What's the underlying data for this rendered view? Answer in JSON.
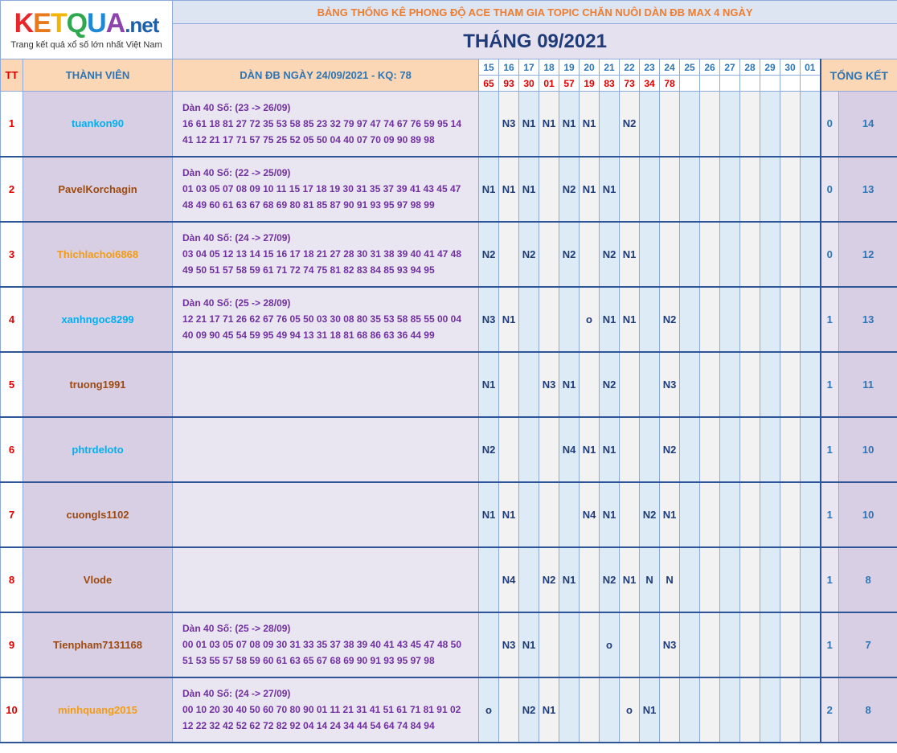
{
  "logo": {
    "brand": "KETQUA",
    "suffix": ".net",
    "tagline": "Trang kết quả xổ số lớn nhất Việt Nam"
  },
  "title": "BẢNG THỐNG KÊ PHONG ĐỘ ACE THAM GIA TOPIC CHĂN NUÔI DÀN ĐB MAX 4 NGÀY",
  "month": "THÁNG 09/2021",
  "headers": {
    "tt": "TT",
    "member": "THÀNH VIÊN",
    "dan": "DÀN ĐB NGÀY 24/09/2021 - KQ: 78",
    "total": "TỔNG KẾT"
  },
  "days": [
    "15",
    "16",
    "17",
    "18",
    "19",
    "20",
    "21",
    "22",
    "23",
    "24",
    "25",
    "26",
    "27",
    "28",
    "29",
    "30",
    "01"
  ],
  "results": [
    "65",
    "93",
    "30",
    "01",
    "57",
    "19",
    "83",
    "73",
    "34",
    "78",
    "",
    "",
    "",
    "",
    "",
    "",
    ""
  ],
  "colors": {
    "orange": "#e46c0a",
    "blue": "#00b0f0",
    "brown": "#9c4a10"
  },
  "rows": [
    {
      "tt": "1",
      "name": "tuankon90",
      "color": "#00b0f0",
      "dan_title": "Dàn 40 Số: (23 -> 26/09)",
      "dan_l1": "16 61 18 81 27 72 35 53 58 85 23 32 79 97 47 74 67 76 59 95 14",
      "dan_l2": "41 12 21 17 71 57 75 25 52 05 50 04 40 07 70 09 90 89 98",
      "cells": [
        "",
        "N3",
        "N1",
        "N1",
        "N1",
        "N1",
        "",
        "N2",
        "",
        "",
        "",
        "",
        "",
        "",
        "",
        "",
        ""
      ],
      "count": "0",
      "total": "14"
    },
    {
      "tt": "2",
      "name": "PavelKorchagin",
      "color": "#9c4a10",
      "dan_title": "Dàn 40 Số: (22 -> 25/09)",
      "dan_l1": "01 03 05 07 08 09 10 11 15 17 18 19 30 31 35 37 39 41 43 45 47",
      "dan_l2": "48 49 60 61 63 67 68 69 80 81 85 87 90 91 93 95 97 98 99",
      "cells": [
        "N1",
        "N1",
        "N1",
        "",
        "N2",
        "N1",
        "N1",
        "",
        "",
        "",
        "",
        "",
        "",
        "",
        "",
        "",
        ""
      ],
      "count": "0",
      "total": "13"
    },
    {
      "tt": "3",
      "name": "Thichlachoi6868",
      "color": "#f39c12",
      "dan_title": "Dàn 40 Số: (24 -> 27/09)",
      "dan_l1": "03 04 05 12 13 14 15 16 17 18 21 27 28 30 31 38 39 40 41 47 48",
      "dan_l2": "49 50 51 57 58 59 61 71 72 74 75 81 82 83 84 85 93 94 95",
      "cells": [
        "N2",
        "",
        "N2",
        "",
        "N2",
        "",
        "N2",
        "N1",
        "",
        "",
        "",
        "",
        "",
        "",
        "",
        "",
        ""
      ],
      "count": "0",
      "total": "12"
    },
    {
      "tt": "4",
      "name": "xanhngoc8299",
      "color": "#00b0f0",
      "dan_title": "Dàn 40 Số: (25 -> 28/09)",
      "dan_l1": "12 21 17 71 26 62 67 76 05 50 03 30 08 80 35 53 58 85 55 00 04",
      "dan_l2": "40 09 90 45 54 59 95 49 94 13 31 18 81 68 86 63 36 44 99",
      "cells": [
        "N3",
        "N1",
        "",
        "",
        "",
        "o",
        "N1",
        "N1",
        "",
        "N2",
        "",
        "",
        "",
        "",
        "",
        "",
        ""
      ],
      "count": "1",
      "total": "13"
    },
    {
      "tt": "5",
      "name": "truong1991",
      "color": "#9c4a10",
      "dan_title": "",
      "dan_l1": "",
      "dan_l2": "",
      "cells": [
        "N1",
        "",
        "",
        "N3",
        "N1",
        "",
        "N2",
        "",
        "",
        "N3",
        "",
        "",
        "",
        "",
        "",
        "",
        ""
      ],
      "count": "1",
      "total": "11"
    },
    {
      "tt": "6",
      "name": "phtrdeloto",
      "color": "#00b0f0",
      "dan_title": "",
      "dan_l1": "",
      "dan_l2": "",
      "cells": [
        "N2",
        "",
        "",
        "",
        "N4",
        "N1",
        "N1",
        "",
        "",
        "N2",
        "",
        "",
        "",
        "",
        "",
        "",
        ""
      ],
      "count": "1",
      "total": "10"
    },
    {
      "tt": "7",
      "name": "cuongls1102",
      "color": "#9c4a10",
      "dan_title": "",
      "dan_l1": "",
      "dan_l2": "",
      "cells": [
        "N1",
        "N1",
        "",
        "",
        "",
        "N4",
        "N1",
        "",
        "N2",
        "N1",
        "",
        "",
        "",
        "",
        "",
        "",
        ""
      ],
      "count": "1",
      "total": "10"
    },
    {
      "tt": "8",
      "name": "Vlode",
      "color": "#9c4a10",
      "dan_title": "",
      "dan_l1": "",
      "dan_l2": "",
      "cells": [
        "",
        "N4",
        "",
        "N2",
        "N1",
        "",
        "N2",
        "N1",
        "N",
        "N",
        "",
        "",
        "",
        "",
        "",
        "",
        ""
      ],
      "count": "1",
      "total": "8"
    },
    {
      "tt": "9",
      "name": "Tienpham7131168",
      "color": "#9c4a10",
      "dan_title": "Dàn 40 Số: (25 -> 28/09)",
      "dan_l1": "00 01 03 05 07 08 09 30 31 33 35 37 38 39 40 41 43 45 47 48 50",
      "dan_l2": "51 53 55 57 58 59 60 61 63 65 67 68 69 90 91 93 95 97 98",
      "cells": [
        "",
        "N3",
        "N1",
        "",
        "",
        "",
        "o",
        "",
        "",
        "N3",
        "",
        "",
        "",
        "",
        "",
        "",
        ""
      ],
      "count": "1",
      "total": "7"
    },
    {
      "tt": "10",
      "name": "minhquang2015",
      "color": "#f39c12",
      "dan_title": "Dàn 40 Số: (24 -> 27/09)",
      "dan_l1": "00 10 20 30 40 50 60 70 80 90 01 11 21 31 41 51 61 71 81 91 02",
      "dan_l2": "12 22 32 42 52 62 72 82 92 04 14 24 34 44 54 64 74 84 94",
      "cells": [
        "o",
        "",
        "N2",
        "N1",
        "",
        "",
        "",
        "o",
        "N1",
        "",
        "",
        "",
        "",
        "",
        "",
        "",
        ""
      ],
      "count": "2",
      "total": "8"
    }
  ]
}
